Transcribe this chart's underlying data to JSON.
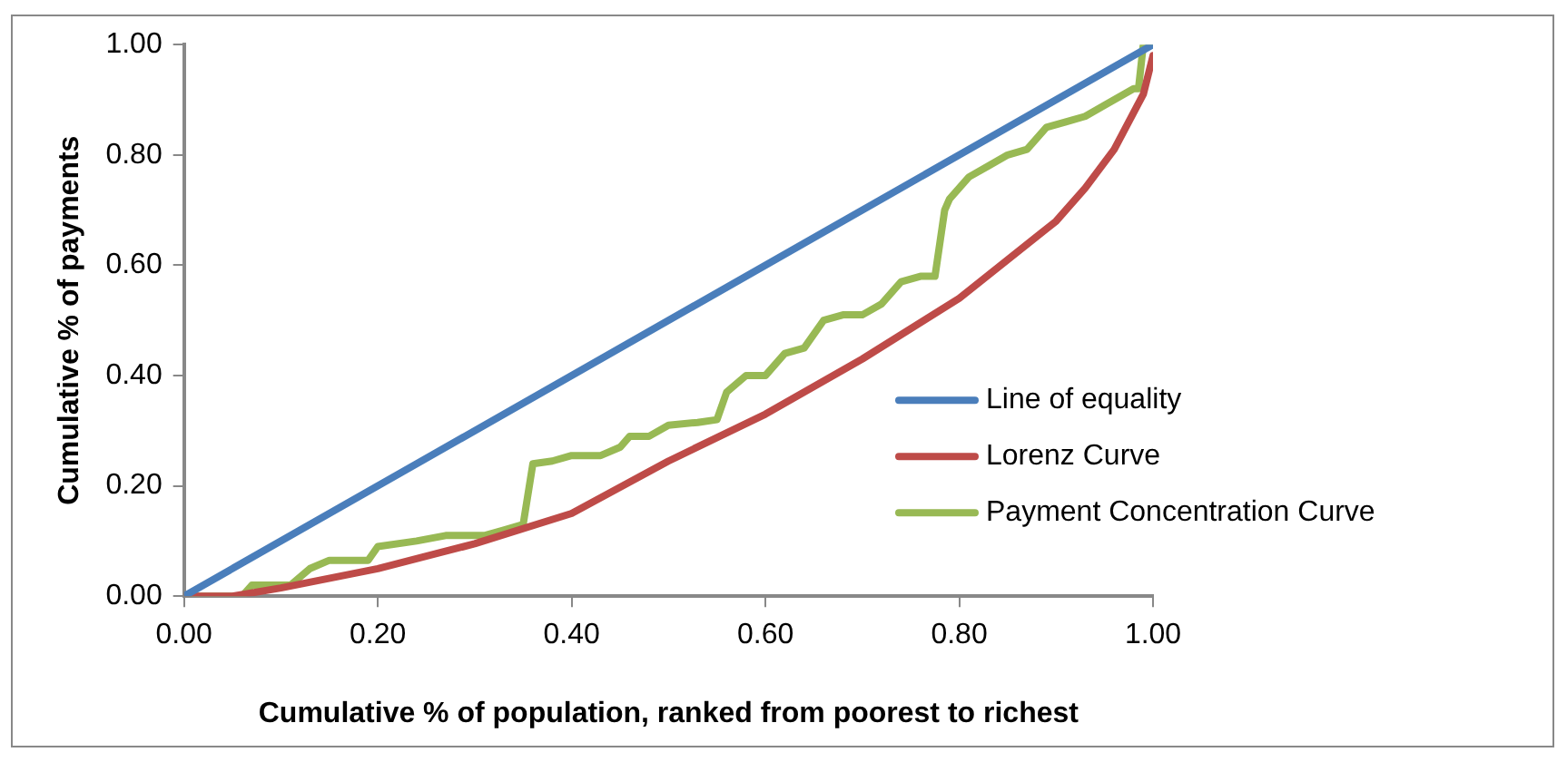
{
  "chart_data": {
    "type": "line",
    "xlabel": "Cumulative % of population, ranked from poorest to richest",
    "ylabel": "Cumulative % of payments",
    "xlim": [
      0,
      1
    ],
    "ylim": [
      0,
      1
    ],
    "xticks": [
      {
        "value": 0,
        "label": "0.00"
      },
      {
        "value": 0.2,
        "label": "0.20"
      },
      {
        "value": 0.4,
        "label": "0.40"
      },
      {
        "value": 0.6,
        "label": "0.60"
      },
      {
        "value": 0.8,
        "label": "0.80"
      },
      {
        "value": 1,
        "label": "1.00"
      }
    ],
    "yticks": [
      {
        "value": 0,
        "label": "0.00"
      },
      {
        "value": 0.2,
        "label": "0.20"
      },
      {
        "value": 0.4,
        "label": "0.40"
      },
      {
        "value": 0.6,
        "label": "0.60"
      },
      {
        "value": 0.8,
        "label": "0.80"
      },
      {
        "value": 1,
        "label": "1.00"
      }
    ],
    "grid": false,
    "legend": "right",
    "marker": "none",
    "series": [
      {
        "name": "Line of equality",
        "color": "#4a7ebb",
        "x": [
          0,
          1
        ],
        "values": [
          0,
          1
        ]
      },
      {
        "name": "Lorenz Curve",
        "color": "#be4b48",
        "x": [
          0,
          0.05,
          0.1,
          0.2,
          0.3,
          0.4,
          0.5,
          0.6,
          0.7,
          0.8,
          0.9,
          0.93,
          0.96,
          0.99,
          1.0
        ],
        "values": [
          0,
          0,
          0.015,
          0.05,
          0.095,
          0.15,
          0.245,
          0.33,
          0.43,
          0.54,
          0.68,
          0.74,
          0.81,
          0.91,
          0.98
        ]
      },
      {
        "name": "Payment Concentration Curve",
        "color": "#98b954",
        "x": [
          0,
          0.06,
          0.07,
          0.11,
          0.13,
          0.15,
          0.19,
          0.2,
          0.24,
          0.27,
          0.31,
          0.33,
          0.35,
          0.36,
          0.38,
          0.4,
          0.43,
          0.45,
          0.46,
          0.48,
          0.5,
          0.53,
          0.55,
          0.56,
          0.58,
          0.6,
          0.62,
          0.64,
          0.66,
          0.68,
          0.7,
          0.72,
          0.74,
          0.76,
          0.775,
          0.785,
          0.79,
          0.81,
          0.83,
          0.85,
          0.87,
          0.89,
          0.91,
          0.93,
          0.95,
          0.98,
          0.985,
          0.99,
          1.0
        ],
        "values": [
          0,
          0,
          0.02,
          0.02,
          0.05,
          0.065,
          0.065,
          0.09,
          0.1,
          0.11,
          0.11,
          0.12,
          0.13,
          0.24,
          0.245,
          0.255,
          0.255,
          0.27,
          0.29,
          0.29,
          0.31,
          0.315,
          0.32,
          0.37,
          0.4,
          0.4,
          0.44,
          0.45,
          0.5,
          0.51,
          0.51,
          0.53,
          0.57,
          0.58,
          0.58,
          0.7,
          0.72,
          0.76,
          0.78,
          0.8,
          0.81,
          0.85,
          0.86,
          0.87,
          0.89,
          0.92,
          0.92,
          1.0,
          1.0
        ]
      }
    ]
  }
}
